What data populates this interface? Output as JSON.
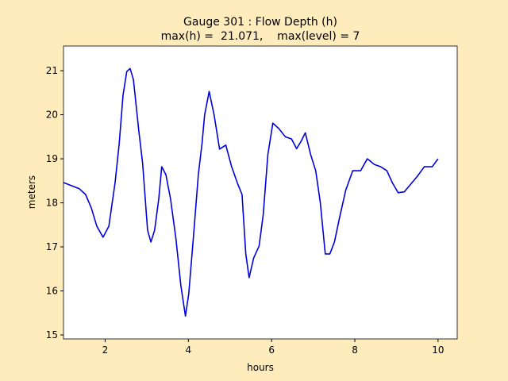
{
  "chart_data": {
    "type": "line",
    "title": "Gauge 301 : Flow Depth (h)",
    "subtitle": "max(h) =  21.071,    max(level) = 7",
    "x_label": "hours",
    "y_label": "meters",
    "xlim": [
      1.0,
      10.46
    ],
    "ylim": [
      14.91,
      21.56
    ],
    "xticks": [
      2,
      4,
      6,
      8,
      10
    ],
    "yticks": [
      15,
      16,
      17,
      18,
      19,
      20,
      21
    ],
    "x": [
      1.0,
      1.19,
      1.38,
      1.53,
      1.67,
      1.8,
      1.95,
      2.09,
      2.24,
      2.34,
      2.43,
      2.52,
      2.6,
      2.68,
      2.81,
      2.9,
      3.02,
      3.1,
      3.19,
      3.29,
      3.36,
      3.46,
      3.57,
      3.7,
      3.82,
      3.93,
      4.01,
      4.12,
      4.24,
      4.33,
      4.39,
      4.5,
      4.62,
      4.75,
      4.9,
      5.04,
      5.19,
      5.29,
      5.38,
      5.46,
      5.57,
      5.7,
      5.8,
      5.91,
      6.03,
      6.18,
      6.33,
      6.48,
      6.6,
      6.71,
      6.81,
      6.94,
      7.06,
      7.17,
      7.29,
      7.4,
      7.51,
      7.63,
      7.78,
      7.95,
      8.14,
      8.3,
      8.47,
      8.62,
      8.77,
      8.9,
      9.04,
      9.19,
      9.34,
      9.5,
      9.67,
      9.86,
      10.0
    ],
    "series": [
      {
        "name": "h",
        "color": "#0000dd",
        "values": [
          18.46,
          18.39,
          18.32,
          18.19,
          17.88,
          17.47,
          17.22,
          17.47,
          18.46,
          19.36,
          20.44,
          20.98,
          21.05,
          20.8,
          19.63,
          18.91,
          17.38,
          17.11,
          17.38,
          18.1,
          18.82,
          18.64,
          18.1,
          17.2,
          16.12,
          15.43,
          15.94,
          17.2,
          18.64,
          19.36,
          19.99,
          20.53,
          19.99,
          19.22,
          19.31,
          18.82,
          18.42,
          18.19,
          16.84,
          16.3,
          16.75,
          17.02,
          17.74,
          19.09,
          19.81,
          19.68,
          19.5,
          19.45,
          19.23,
          19.4,
          19.59,
          19.09,
          18.73,
          18.01,
          16.84,
          16.84,
          17.11,
          17.65,
          18.28,
          18.73,
          18.73,
          19.0,
          18.87,
          18.82,
          18.73,
          18.46,
          18.23,
          18.25,
          18.42,
          18.6,
          18.82,
          18.82,
          19.0
        ]
      }
    ]
  }
}
